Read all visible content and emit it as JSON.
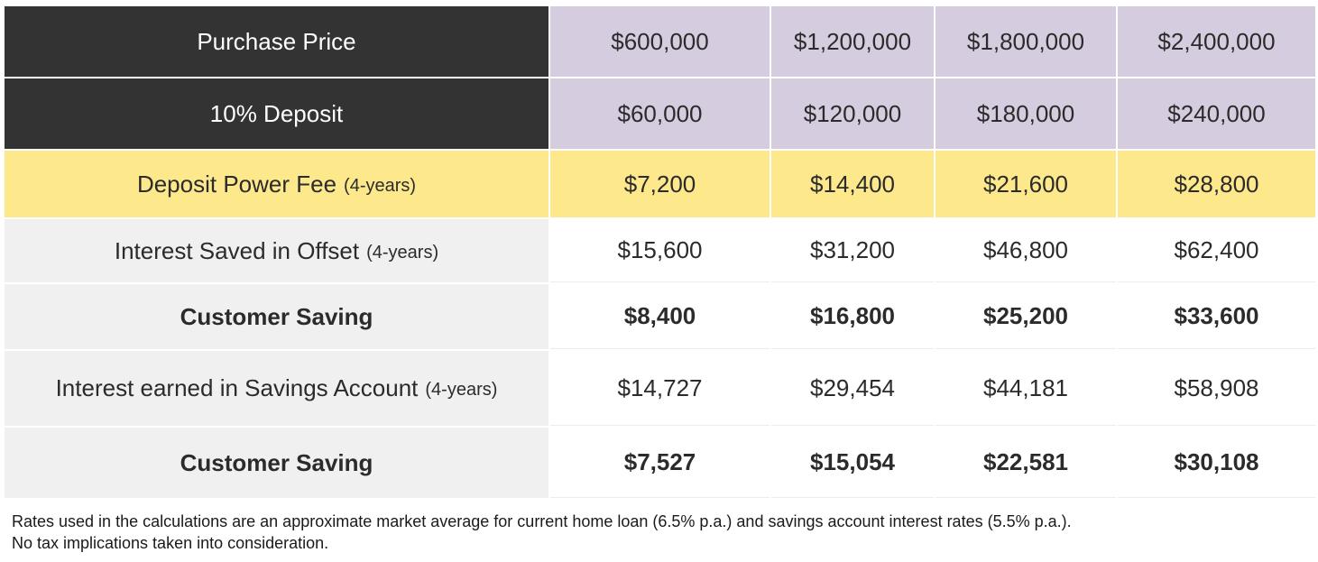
{
  "table": {
    "rows": [
      {
        "label": "Purchase Price",
        "note": "",
        "values": [
          "$600,000",
          "$1,200,000",
          "$1,800,000",
          "$2,400,000"
        ]
      },
      {
        "label": "10% Deposit",
        "note": "",
        "values": [
          "$60,000",
          "$120,000",
          "$180,000",
          "$240,000"
        ]
      },
      {
        "label": "Deposit Power Fee",
        "note": "(4-years)",
        "values": [
          "$7,200",
          "$14,400",
          "$21,600",
          "$28,800"
        ]
      },
      {
        "label": "Interest Saved in Offset",
        "note": "(4-years)",
        "values": [
          "$15,600",
          "$31,200",
          "$46,800",
          "$62,400"
        ]
      },
      {
        "label": "Customer Saving",
        "note": "",
        "values": [
          "$8,400",
          "$16,800",
          "$25,200",
          "$33,600"
        ]
      },
      {
        "label": "Interest earned in Savings Account",
        "note": "(4-years)",
        "values": [
          "$14,727",
          "$29,454",
          "$44,181",
          "$58,908"
        ]
      },
      {
        "label": "Customer Saving",
        "note": "",
        "values": [
          "$7,527",
          "$15,054",
          "$22,581",
          "$30,108"
        ]
      }
    ]
  },
  "footnote": {
    "line1": "Rates used in the calculations are an approximate market average for current home loan (6.5% p.a.) and savings account interest rates (5.5% p.a.).",
    "line2": "No tax implications taken into consideration."
  },
  "colors": {
    "header_label_bg": "#333333",
    "header_value_bg": "#d6cce0",
    "highlight_bg": "#fde88c",
    "label_bg": "#f0f0f0"
  }
}
